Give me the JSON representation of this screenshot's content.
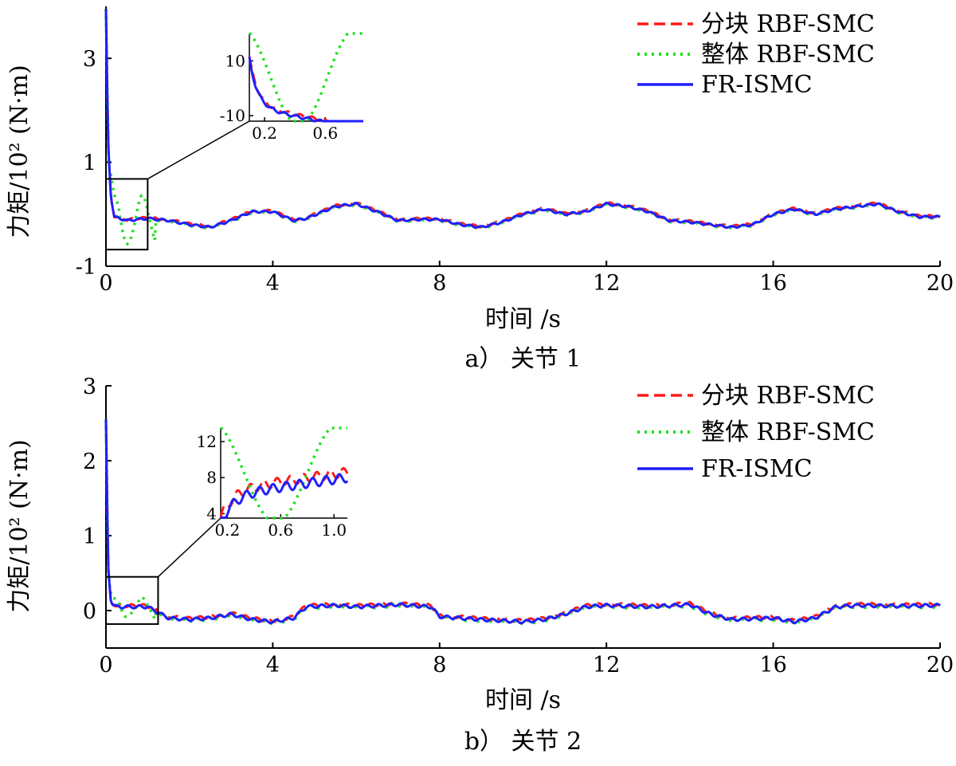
{
  "chart_data": [
    {
      "type": "line",
      "caption": "a） 关节 1",
      "xlabel": "时间 /s",
      "ylabel": "力矩/10²  (N·m)",
      "xlim": [
        0,
        20
      ],
      "ylim": [
        -1.0,
        4.0
      ],
      "xticks": [
        "0",
        "4",
        "8",
        "12",
        "16",
        "20"
      ],
      "yticks": [
        "-1",
        "1",
        "3"
      ],
      "legend_position": "top-right",
      "series": [
        {
          "name": "分块 RBF-SMC",
          "style": "dashed",
          "color": "#ff1a1a"
        },
        {
          "name": "整体 RBF-SMC",
          "style": "dotted",
          "color": "#22e022"
        },
        {
          "name": "FR-ISMC",
          "style": "solid",
          "color": "#1f1fff"
        }
      ],
      "profile": {
        "x": [
          0,
          0.05,
          0.12,
          0.2,
          0.5,
          1.0,
          1.5,
          2.0,
          2.5,
          3.0,
          3.5,
          4.0,
          4.5,
          4.8,
          5.2,
          5.5,
          6.0,
          6.5,
          7.0,
          7.5,
          8.0,
          8.5,
          9.0,
          9.5,
          10.0,
          10.5,
          11.0,
          11.5,
          12.0,
          12.5,
          13.0,
          13.5,
          14.0,
          14.5,
          15.0,
          15.5,
          16.0,
          16.5,
          17.0,
          17.5,
          18.0,
          18.5,
          19.0,
          19.5,
          20.0
        ],
        "y": [
          3.95,
          1.4,
          0.3,
          -0.05,
          -0.12,
          -0.08,
          -0.12,
          -0.2,
          -0.25,
          -0.12,
          0.05,
          0.05,
          -0.12,
          -0.08,
          0.05,
          0.15,
          0.2,
          0.05,
          -0.12,
          -0.1,
          -0.1,
          -0.2,
          -0.25,
          -0.15,
          0.0,
          0.1,
          0.0,
          0.05,
          0.2,
          0.15,
          0.05,
          -0.12,
          -0.15,
          -0.2,
          -0.25,
          -0.2,
          0.0,
          0.1,
          0.0,
          0.1,
          0.15,
          0.2,
          0.05,
          -0.05,
          -0.05
        ]
      },
      "inset": {
        "xlim": [
          0.1,
          0.85
        ],
        "ylim": [
          -12,
          20
        ],
        "xticks": [
          "0.2",
          "0.6"
        ],
        "yticks": [
          "-10",
          "10"
        ]
      }
    },
    {
      "type": "line",
      "caption": "b） 关节 2",
      "xlabel": "时间 /s",
      "ylabel": "力矩/10²  (N·m)",
      "xlim": [
        0,
        20
      ],
      "ylim": [
        -0.5,
        3.0
      ],
      "xticks": [
        "0",
        "4",
        "8",
        "12",
        "16",
        "20"
      ],
      "yticks": [
        "0",
        "1",
        "2",
        "3"
      ],
      "legend_position": "top-right",
      "series": [
        {
          "name": "分块 RBF-SMC",
          "style": "dashed",
          "color": "#ff1a1a"
        },
        {
          "name": "整体 RBF-SMC",
          "style": "dotted",
          "color": "#22e022"
        },
        {
          "name": "FR-ISMC",
          "style": "solid",
          "color": "#1f1fff"
        }
      ],
      "profile": {
        "x": [
          0,
          0.05,
          0.12,
          0.25,
          0.5,
          1.0,
          1.5,
          2.0,
          2.5,
          3.0,
          3.5,
          4.0,
          4.5,
          4.8,
          5.5,
          6.0,
          7.0,
          7.5,
          7.8,
          8.0,
          9.0,
          10.0,
          10.5,
          11.0,
          11.5,
          12.0,
          13.0,
          14.0,
          14.5,
          15.0,
          16.0,
          16.5,
          17.0,
          17.5,
          18.0,
          19.0,
          20.0
        ],
        "y": [
          2.55,
          0.6,
          0.1,
          0.05,
          0.05,
          0.05,
          -0.1,
          -0.12,
          -0.1,
          -0.05,
          -0.12,
          -0.15,
          -0.1,
          0.05,
          0.07,
          0.05,
          0.08,
          0.06,
          0.05,
          -0.08,
          -0.12,
          -0.15,
          -0.12,
          -0.05,
          0.05,
          0.07,
          0.05,
          0.08,
          -0.05,
          -0.12,
          -0.1,
          -0.15,
          -0.1,
          0.05,
          0.07,
          0.06,
          0.07
        ]
      },
      "inset": {
        "xlim": [
          0.15,
          1.1
        ],
        "ylim": [
          3.5,
          13.5
        ],
        "xticks": [
          "0.2",
          "0.6",
          "1.0"
        ],
        "yticks": [
          "4",
          "8",
          "12"
        ]
      }
    }
  ]
}
